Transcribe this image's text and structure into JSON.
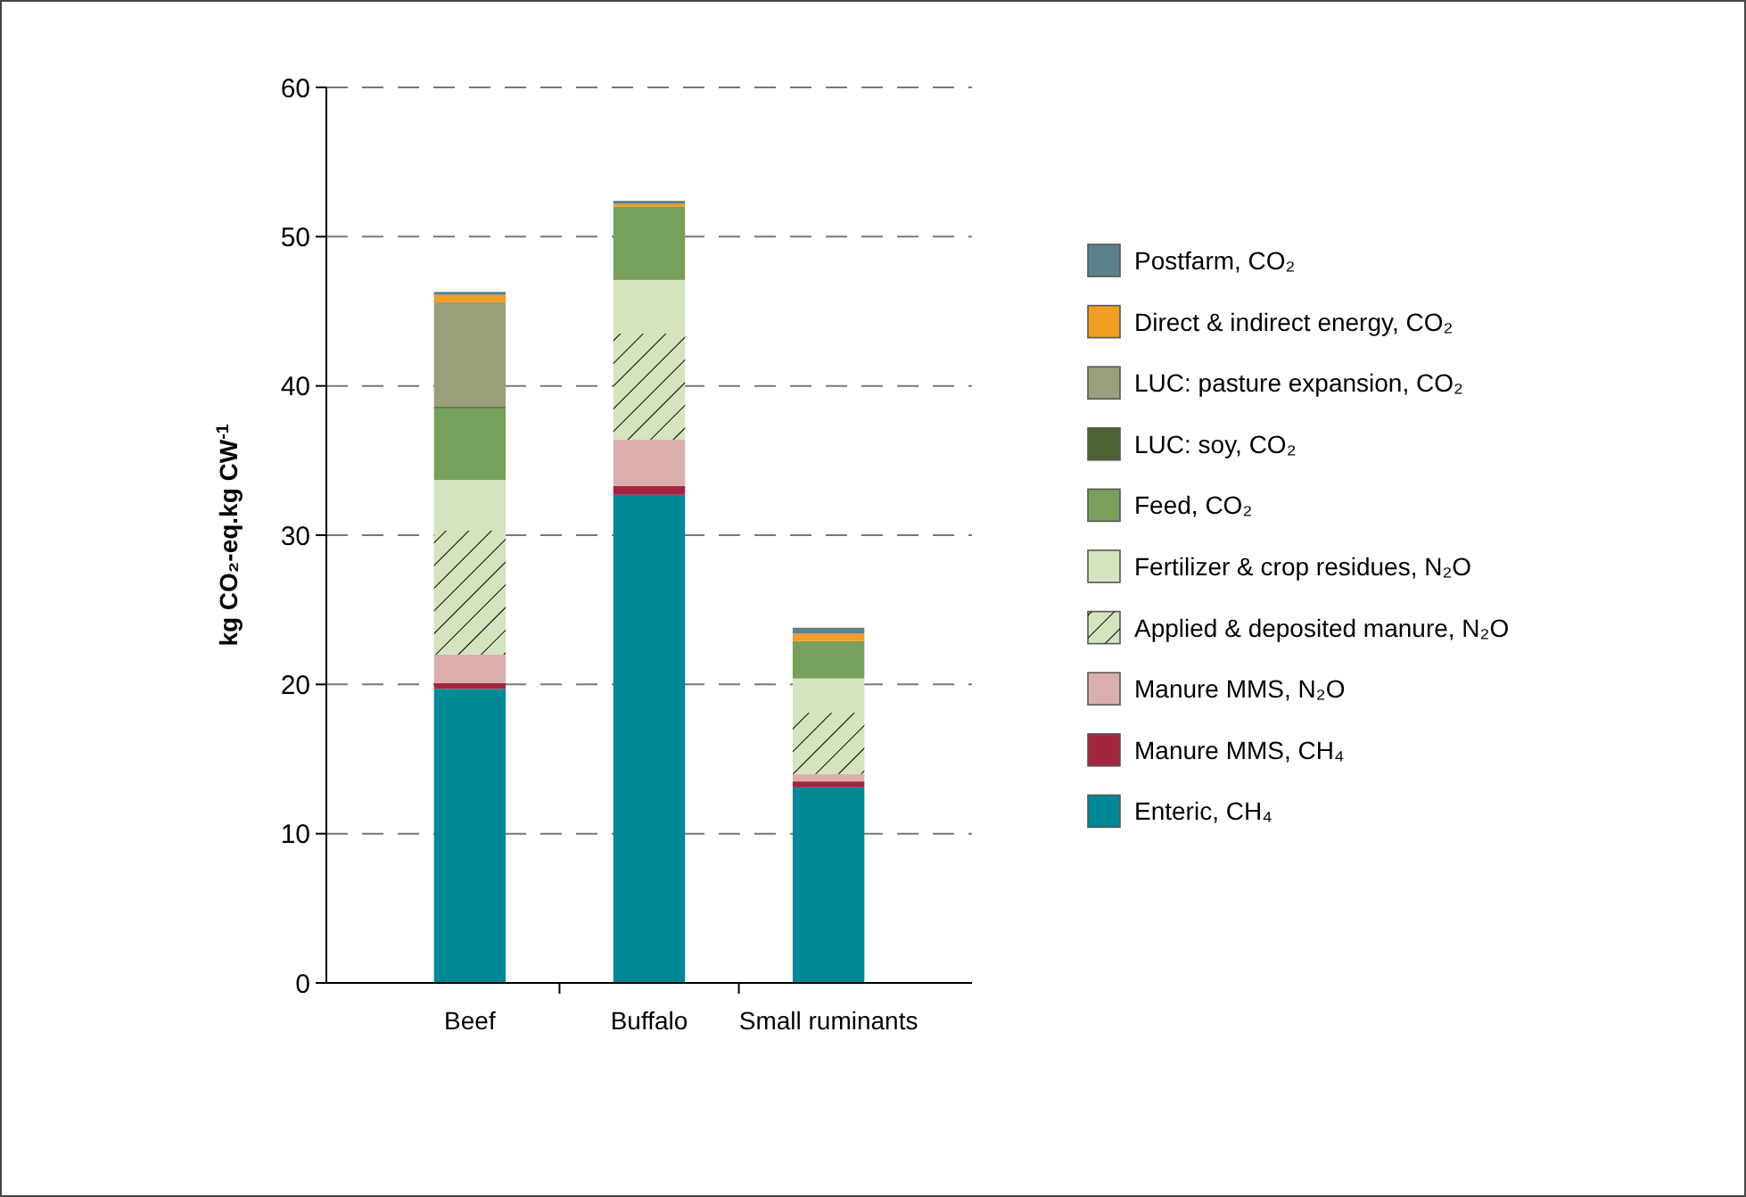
{
  "chart_data": {
    "type": "bar",
    "stacked": true,
    "ylabel": "kg CO₂-eq.kg CW$^{-1}$",
    "categories": [
      "Beef",
      "Buffalo",
      "Small ruminants"
    ],
    "ylim": [
      0,
      60
    ],
    "yticks": [
      0,
      10,
      20,
      30,
      40,
      50,
      60
    ],
    "grid": "y",
    "legend": "right",
    "series": [
      {
        "name": "Enteric, CH₄",
        "color": "#008896",
        "values": [
          19.7,
          32.7,
          13.1
        ]
      },
      {
        "name": "Manure MMS, CH₄",
        "color": "#a3263f",
        "values": [
          0.4,
          0.6,
          0.4
        ]
      },
      {
        "name": "Manure MMS, N₂O",
        "color": "#dbaeae",
        "values": [
          1.9,
          3.1,
          0.5
        ]
      },
      {
        "name": "Applied & deposited manure, N₂O",
        "color": "#d5e3be",
        "values": [
          8.3,
          7.1,
          4.1
        ]
      },
      {
        "name": "Fertilizer & crop residues, N₂O",
        "color": "#d5e3be",
        "values": [
          3.4,
          3.6,
          2.3
        ]
      },
      {
        "name": "Feed, CO₂",
        "color": "#77a05a",
        "values": [
          4.8,
          4.9,
          2.5
        ]
      },
      {
        "name": "LUC: soy, CO₂",
        "color": "#4e6430",
        "values": [
          0.1,
          0,
          0
        ]
      },
      {
        "name": "LUC: pasture expansion, CO₂",
        "color": "#9a9e7b",
        "values": [
          7.0,
          0,
          0
        ]
      },
      {
        "name": "Direct & indirect energy, CO₂",
        "color": "#f29e25",
        "values": [
          0.5,
          0.2,
          0.5
        ]
      },
      {
        "name": "Postfarm, CO₂",
        "color": "#5a828c",
        "values": [
          0.2,
          0.2,
          0.4
        ]
      }
    ]
  }
}
